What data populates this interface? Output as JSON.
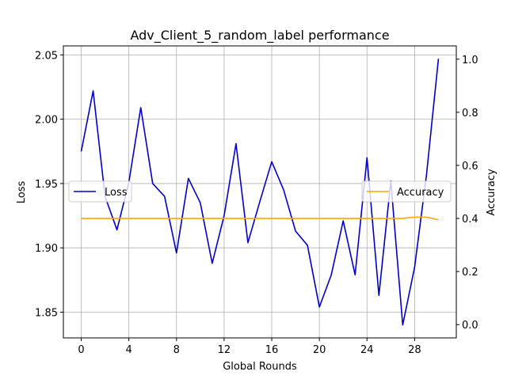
{
  "chart_data": {
    "type": "line",
    "title": "Adv_Client_5_random_label performance",
    "xlabel": "Global Rounds",
    "ylabel": "Loss",
    "y2label": "Accuracy",
    "grid": true,
    "xlim": [
      -1.5,
      31.5
    ],
    "ylim": [
      1.83,
      2.057
    ],
    "y2lim": [
      -0.05,
      1.05
    ],
    "xticks": [
      0,
      4,
      8,
      12,
      16,
      20,
      24,
      28
    ],
    "yticks": [
      1.85,
      1.9,
      1.95,
      2.0,
      2.05
    ],
    "y2ticks": [
      0.0,
      0.2,
      0.4,
      0.6,
      0.8,
      1.0
    ],
    "ytick_labels": [
      "1.85",
      "1.90",
      "1.95",
      "2.00",
      "2.05"
    ],
    "y2tick_labels": [
      "0.0",
      "0.2",
      "0.4",
      "0.6",
      "0.8",
      "1.0"
    ],
    "x": [
      0,
      1,
      2,
      3,
      4,
      5,
      6,
      7,
      8,
      9,
      10,
      11,
      12,
      13,
      14,
      15,
      16,
      17,
      18,
      19,
      20,
      21,
      22,
      23,
      24,
      25,
      26,
      27,
      28,
      29,
      30
    ],
    "series": [
      {
        "name": "Loss",
        "axis": "left",
        "color": "#0000cc",
        "legend": "center-left",
        "values": [
          1.975,
          2.022,
          1.94,
          1.914,
          1.951,
          2.009,
          1.95,
          1.94,
          1.896,
          1.954,
          1.935,
          1.888,
          1.925,
          1.981,
          1.904,
          1.936,
          1.967,
          1.945,
          1.913,
          1.902,
          1.854,
          1.879,
          1.921,
          1.879,
          1.97,
          1.863,
          1.952,
          1.84,
          1.885,
          1.957,
          2.047
        ]
      },
      {
        "name": "Accuracy",
        "axis": "right",
        "color": "#ffa500",
        "legend": "center-right",
        "values": [
          0.4,
          0.4,
          0.4,
          0.4,
          0.4,
          0.4,
          0.4,
          0.4,
          0.4,
          0.4,
          0.4,
          0.4,
          0.4,
          0.4,
          0.4,
          0.4,
          0.4,
          0.4,
          0.4,
          0.4,
          0.4,
          0.4,
          0.4,
          0.4,
          0.4,
          0.4,
          0.4,
          0.4,
          0.405,
          0.405,
          0.395
        ]
      }
    ]
  }
}
